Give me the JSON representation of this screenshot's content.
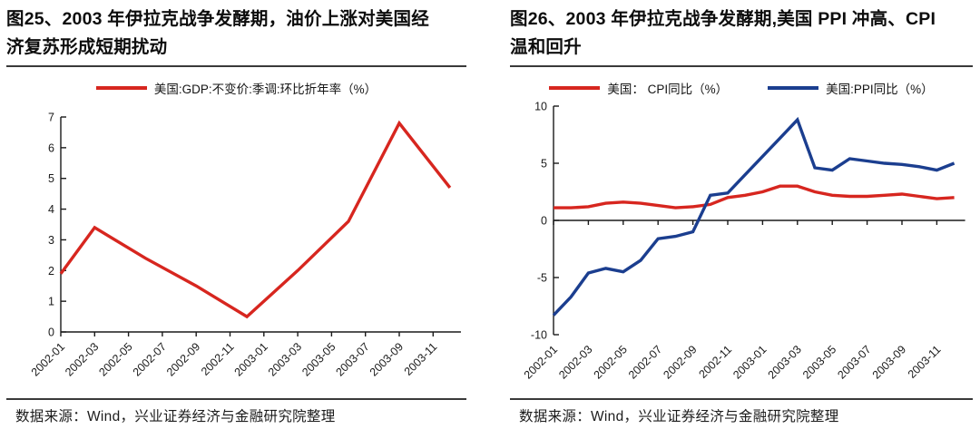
{
  "page": {
    "background": "#ffffff"
  },
  "panels": [
    {
      "id": "fig25",
      "title": "图25、2003 年伊拉克战争发酵期，油价上涨对美国经济复苏形成短期扰动",
      "legend": [
        {
          "label": "美国:GDP:不变价:季调:环比折年率（%）",
          "color": "#d7261f"
        }
      ],
      "source": "数据来源：Wind，兴业证券经济与金融研究院整理"
    },
    {
      "id": "fig26",
      "title": "图26、2003 年伊拉克战争发酵期,美国 PPI 冲高、CPI 温和回升",
      "legend": [
        {
          "label": "美国： CPI同比（%）",
          "color": "#d7261f"
        },
        {
          "label": "美国:PPI同比（%）",
          "color": "#1b3e8f"
        }
      ],
      "source": "数据来源：Wind，兴业证券经济与金融研究院整理"
    }
  ],
  "chart_data": [
    {
      "type": "line",
      "title": "图25、2003 年伊拉克战争发酵期，油价上涨对美国经济复苏形成短期扰动",
      "xlabel": "",
      "ylabel": "",
      "ylim": [
        0,
        7
      ],
      "yticks": [
        0,
        1,
        2,
        3,
        4,
        5,
        6,
        7
      ],
      "grid": false,
      "legend_position": "top-center",
      "x_tick_labels": [
        "2002-01",
        "2002-03",
        "2002-05",
        "2002-07",
        "2002-09",
        "2002-11",
        "2003-01",
        "2003-03",
        "2003-05",
        "2003-07",
        "2003-09",
        "2003-11"
      ],
      "series": [
        {
          "name": "美国:GDP:不变价:季调:环比折年率（%）",
          "color": "#d7261f",
          "points": [
            [
              "2002-01",
              1.9
            ],
            [
              "2002-03",
              3.4
            ],
            [
              "2002-06",
              2.4
            ],
            [
              "2002-09",
              1.5
            ],
            [
              "2002-12",
              0.5
            ],
            [
              "2003-03",
              2.0
            ],
            [
              "2003-06",
              3.6
            ],
            [
              "2003-09",
              6.8
            ],
            [
              "2003-12",
              4.7
            ]
          ]
        }
      ]
    },
    {
      "type": "line",
      "title": "图26、2003 年伊拉克战争发酵期,美国 PPI 冲高、CPI 温和回升",
      "xlabel": "",
      "ylabel": "",
      "ylim": [
        -10,
        10
      ],
      "yticks": [
        -10,
        -5,
        0,
        5,
        10
      ],
      "grid": false,
      "legend_position": "top-center",
      "x_tick_labels": [
        "2002-01",
        "2002-03",
        "2002-05",
        "2002-07",
        "2002-09",
        "2002-11",
        "2003-01",
        "2003-03",
        "2003-05",
        "2003-07",
        "2003-09",
        "2003-11"
      ],
      "series": [
        {
          "name": "美国： CPI同比（%）",
          "color": "#d7261f",
          "points": [
            [
              "2002-01",
              1.1
            ],
            [
              "2002-02",
              1.1
            ],
            [
              "2002-03",
              1.2
            ],
            [
              "2002-04",
              1.5
            ],
            [
              "2002-05",
              1.6
            ],
            [
              "2002-06",
              1.5
            ],
            [
              "2002-07",
              1.3
            ],
            [
              "2002-08",
              1.1
            ],
            [
              "2002-09",
              1.2
            ],
            [
              "2002-10",
              1.4
            ],
            [
              "2002-11",
              2.0
            ],
            [
              "2002-12",
              2.2
            ],
            [
              "2003-01",
              2.5
            ],
            [
              "2003-02",
              3.0
            ],
            [
              "2003-03",
              3.0
            ],
            [
              "2003-04",
              2.5
            ],
            [
              "2003-05",
              2.2
            ],
            [
              "2003-06",
              2.1
            ],
            [
              "2003-07",
              2.1
            ],
            [
              "2003-08",
              2.2
            ],
            [
              "2003-09",
              2.3
            ],
            [
              "2003-10",
              2.1
            ],
            [
              "2003-11",
              1.9
            ],
            [
              "2003-12",
              2.0
            ]
          ]
        },
        {
          "name": "美国:PPI同比（%）",
          "color": "#1b3e8f",
          "points": [
            [
              "2002-01",
              -8.3
            ],
            [
              "2002-02",
              -6.7
            ],
            [
              "2002-03",
              -4.6
            ],
            [
              "2002-04",
              -4.2
            ],
            [
              "2002-05",
              -4.5
            ],
            [
              "2002-06",
              -3.5
            ],
            [
              "2002-07",
              -1.6
            ],
            [
              "2002-08",
              -1.4
            ],
            [
              "2002-09",
              -1.0
            ],
            [
              "2002-10",
              2.2
            ],
            [
              "2002-11",
              2.4
            ],
            [
              "2002-12",
              4.0
            ],
            [
              "2003-01",
              5.6
            ],
            [
              "2003-02",
              7.2
            ],
            [
              "2003-03",
              8.8
            ],
            [
              "2003-04",
              4.6
            ],
            [
              "2003-05",
              4.4
            ],
            [
              "2003-06",
              5.4
            ],
            [
              "2003-07",
              5.2
            ],
            [
              "2003-08",
              5.0
            ],
            [
              "2003-09",
              4.9
            ],
            [
              "2003-10",
              4.7
            ],
            [
              "2003-11",
              4.4
            ],
            [
              "2003-12",
              5.0
            ]
          ]
        }
      ]
    }
  ]
}
